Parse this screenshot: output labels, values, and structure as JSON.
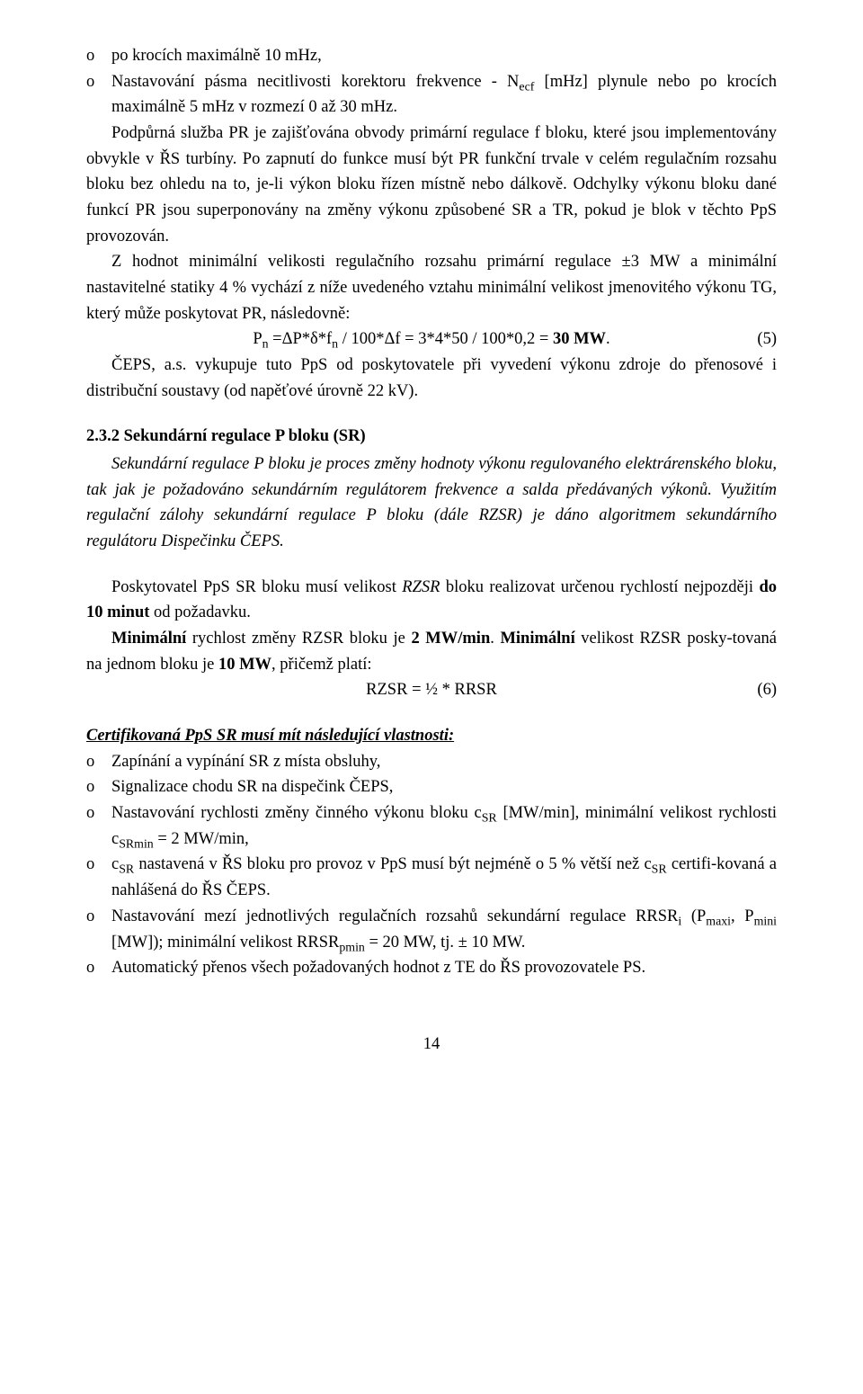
{
  "bullets_top": [
    "po krocích maximálně 10 mHz,",
    "Nastavování pásma necitlivosti korektoru frekvence - N<sub>ecf</sub> [mHz] plynule nebo po krocích maximálně 5 mHz v rozmezí 0 až 30 mHz."
  ],
  "bullet_marker": "o",
  "para1": "Podpůrná služba PR je zajišťována obvody primární regulace f bloku, které jsou implementovány obvykle v ŘS turbíny. Po zapnutí do funkce musí být PR funkční trvale v celém regulačním rozsahu bloku bez ohledu na to, je-li výkon bloku řízen místně nebo dálkově. Odchylky výkonu bloku dané funkcí PR jsou superponovány na změny výkonu způsobené SR a TR, pokud je blok v těchto PpS provozován.",
  "para2": "Z hodnot  minimální velikosti regulačního rozsahu primární regulace ±3 MW a minimální nastavitelné statiky 4 %  vychází z níže uvedeného vztahu minimální velikost jmenovitého výkonu TG, který může poskytovat PR, následovně:",
  "eq1_text": "P<sub>n</sub> =ΔP*δ*f<sub>n</sub> / 100*Δf = 3*4*50 / 100*0,2 = <span class=\"bold\">30 MW</span>.",
  "eq1_num": "(5)",
  "para3": "ČEPS, a.s. vykupuje tuto PpS od poskytovatele při vyvedení výkonu zdroje do přenosové i distribuční soustavy (od napěťové úrovně 22 kV).",
  "heading_232": "2.3.2 Sekundární regulace P bloku (SR)",
  "para_232_1": "Sekundární regulace P bloku je proces změny hodnoty výkonu regulovaného elektrárenského bloku, tak jak je požadováno sekundárním regulátorem frekvence a salda předávaných výkonů. Využitím regulační zálohy sekundární regulace P bloku (dále RZSR) je dáno algoritmem sekundárního regulátoru Dispečinku ČEPS.",
  "para_232_2_a": "Poskytovatel PpS SR bloku musí velikost ",
  "para_232_2_b": " bloku realizovat určenou rychlostí nejpozději ",
  "para_232_2_bold": "do 10 minut",
  "para_232_2_c": " od požadavku.",
  "para_232_2_rzsr": "RZSR",
  "para_232_3_a": "Minimální",
  "para_232_3_b": " rychlost změny RZSR bloku je ",
  "para_232_3_c": "2 MW/min",
  "para_232_3_d": ". ",
  "para_232_3_e": "Minimální",
  "para_232_3_f": " velikost RZSR posky-tovaná na jednom bloku je ",
  "para_232_3_g": "10 MW",
  "para_232_3_h": ", přičemž platí:",
  "eq2_text": "RZSR = ½ * RRSR",
  "eq2_num": "(6)",
  "cert_heading": "Certifikovaná PpS SR musí mít následující vlastnosti:",
  "cert_bullets": [
    "Zapínání a vypínání SR z místa obsluhy,",
    "Signalizace chodu SR na dispečink ČEPS,",
    "Nastavování rychlosti změny činného výkonu bloku c<sub>SR</sub> [MW/min], minimální velikost rychlosti c<sub>SRmin</sub> = 2 MW/min,",
    "c<sub>SR</sub> nastavená v ŘS bloku pro provoz v PpS musí být nejméně o 5 % větší než c<sub>SR</sub> certifi-kovaná a nahlášená do ŘS ČEPS.",
    "Nastavování mezí jednotlivých regulačních rozsahů sekundární regulace RRSR<sub>i</sub> (P<sub>maxi</sub>, P<sub>mini</sub> [MW]); minimální velikost RRSR<sub>pmin</sub> = 20 MW, tj. ± 10 MW.",
    "Automatický přenos všech požadovaných hodnot z TE do ŘS provozovatele PS."
  ],
  "page_number": "14"
}
